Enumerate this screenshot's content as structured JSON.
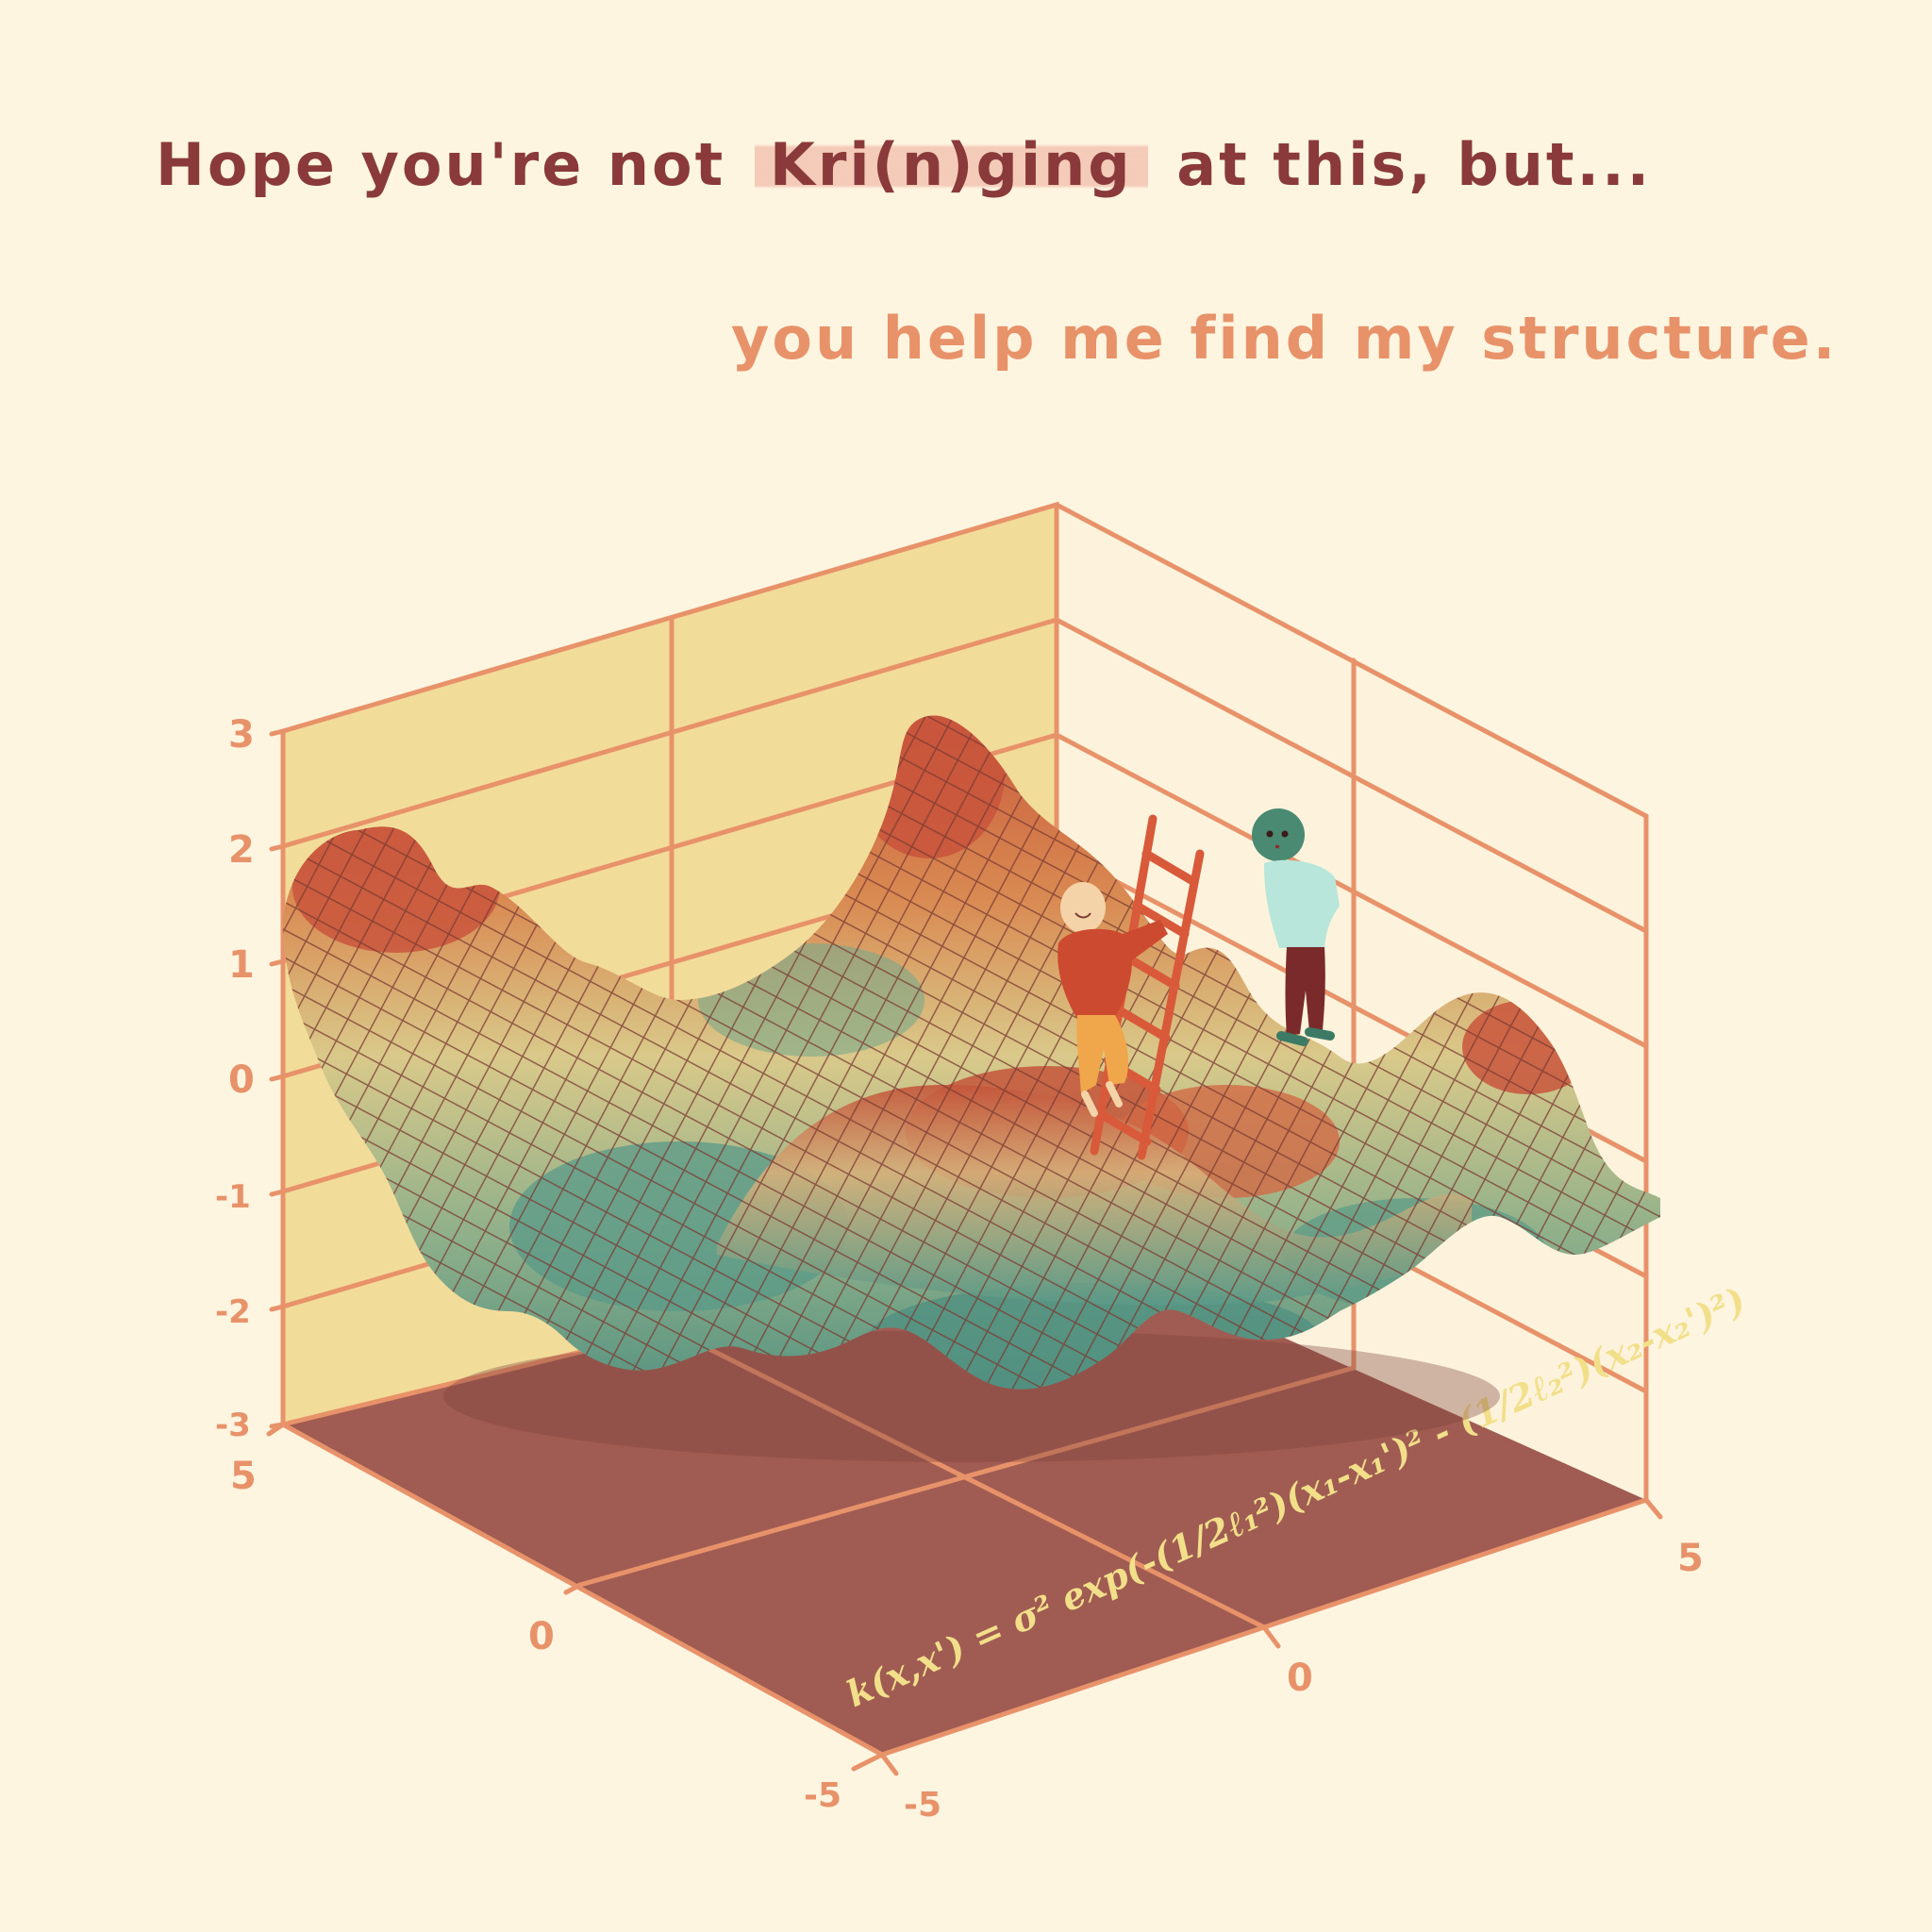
{
  "caption": {
    "line1_before": "Hope you're not",
    "line1_highlight": "Kri(n)ging",
    "line1_after": "at this, but...",
    "line2": "you help me find my structure."
  },
  "axes": {
    "z_ticks": [
      "3",
      "2",
      "1",
      "0",
      "-1",
      "-2",
      "-3"
    ],
    "x_ticks": [
      "5",
      "0",
      "-5"
    ],
    "y_ticks": [
      "-5",
      "0",
      "5"
    ]
  },
  "formula": "k(x,x') = σ² exp(-(1/2ℓ₁²)(x₁-x₁')² - (1/2ℓ₂²)(x₂-x₂')²)",
  "colors": {
    "background": "#fdf5e0",
    "axis_orange": "#e8926a",
    "left_wall": "#f2dc9a",
    "floor": "#a05c52",
    "text_dark": "#8a3a3a",
    "surface_red": "#c8563a",
    "surface_yellow": "#d9c98a",
    "surface_teal": "#5a9a88"
  },
  "figures": [
    "climbing-child-figure",
    "standing-alien-figure",
    "ladder"
  ]
}
